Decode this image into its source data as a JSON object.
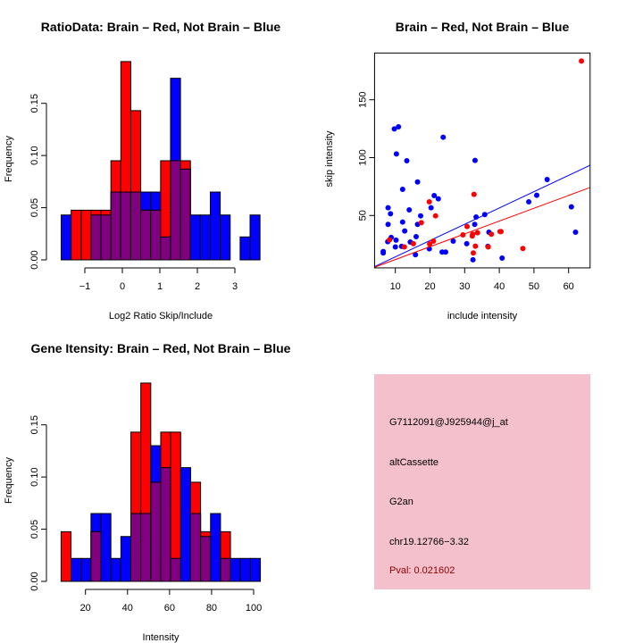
{
  "colors": {
    "brain": "#ff0000",
    "not_brain": "#0000ff",
    "overlap": "#800080",
    "panel": "#f4c0cc",
    "pval": "#8b0000"
  },
  "chart_data": [
    {
      "type": "bar",
      "title": "RatioData: Brain – Red, Not Brain – Blue",
      "xlabel": "Log2 Ratio Skip/Include",
      "ylabel": "Frequency",
      "bin_start": -1.63,
      "bin_width": 0.265,
      "xticks": [
        -1,
        0,
        1,
        2,
        3
      ],
      "xtick_labels": [
        "−1",
        "0",
        "1",
        "2",
        "3"
      ],
      "yticks": [
        0,
        0.05,
        0.1,
        0.15
      ],
      "ytick_labels": [
        "0.00",
        "0.05",
        "0.10",
        "0.15"
      ],
      "series": [
        {
          "name": "Brain",
          "color": "red",
          "values": [
            0,
            0.0476,
            0.0476,
            0.0476,
            0.0476,
            0.095,
            0.19,
            0.143,
            0.0476,
            0.0476,
            0.095,
            0.095,
            0.095,
            0,
            0,
            0,
            0,
            0,
            0,
            0
          ]
        },
        {
          "name": "Not Brain",
          "color": "blue",
          "values": [
            0.043,
            0,
            0,
            0.043,
            0.043,
            0.065,
            0.065,
            0.065,
            0.065,
            0.065,
            0.022,
            0.174,
            0.087,
            0.043,
            0.043,
            0.065,
            0.043,
            0,
            0.022,
            0.043
          ]
        }
      ]
    },
    {
      "type": "scatter",
      "title": "Brain – Red, Not Brain – Blue",
      "xlabel": "include intensity",
      "ylabel": "skip intensity",
      "xlim": [
        4,
        66.2
      ],
      "ylim": [
        4.75,
        190.4
      ],
      "xticks": [
        10,
        20,
        30,
        40,
        50,
        60
      ],
      "yticks": [
        50,
        100,
        150
      ],
      "series": [
        {
          "name": "Not Brain",
          "color": "blue",
          "points": [
            [
              6.5,
              18.9
            ],
            [
              6.5,
              17.6
            ],
            [
              7.9,
              56.7
            ],
            [
              7.9,
              42.3
            ],
            [
              8.6,
              51.5
            ],
            [
              8.8,
              31.0
            ],
            [
              7.8,
              27.4
            ],
            [
              10.2,
              28.7
            ],
            [
              10.0,
              22.8
            ],
            [
              9.7,
              124.8
            ],
            [
              10.9,
              126.6
            ],
            [
              10.3,
              103.2
            ],
            [
              12.1,
              72.6
            ],
            [
              12.1,
              44.3
            ],
            [
              12.7,
              36.6
            ],
            [
              13.3,
              97.3
            ],
            [
              14.0,
              54.9
            ],
            [
              14.3,
              27.1
            ],
            [
              11.8,
              23.3
            ],
            [
              15.8,
              16.1
            ],
            [
              16.0,
              31.7
            ],
            [
              16.4,
              79.0
            ],
            [
              16.4,
              42.3
            ],
            [
              17.3,
              49.7
            ],
            [
              19.8,
              21.2
            ],
            [
              20.3,
              56.7
            ],
            [
              21.2,
              67.2
            ],
            [
              22.4,
              64.4
            ],
            [
              23.8,
              117.6
            ],
            [
              23.5,
              18.4
            ],
            [
              24.5,
              18.4
            ],
            [
              26.7,
              27.9
            ],
            [
              30.6,
              25.6
            ],
            [
              32.4,
              11.7
            ],
            [
              32.9,
              42.3
            ],
            [
              33.0,
              97.6
            ],
            [
              33.3,
              48.7
            ],
            [
              35.8,
              50.8
            ],
            [
              36.7,
              23.3
            ],
            [
              37.0,
              35.6
            ],
            [
              40.8,
              13.2
            ],
            [
              48.5,
              61.8
            ],
            [
              50.8,
              67.5
            ],
            [
              53.8,
              81.1
            ],
            [
              60.8,
              57.5
            ],
            [
              62.0,
              35.6
            ]
          ],
          "fit_line": [
            [
              4,
              5.8
            ],
            [
              66.2,
              93.4
            ]
          ]
        },
        {
          "name": "Brain",
          "color": "red",
          "points": [
            [
              8.3,
              28.9
            ],
            [
              12.6,
              22.8
            ],
            [
              15.2,
              25.6
            ],
            [
              17.5,
              43.8
            ],
            [
              19.8,
              61.8
            ],
            [
              19.9,
              25.3
            ],
            [
              21.0,
              27.9
            ],
            [
              21.6,
              49.7
            ],
            [
              30.7,
              40.5
            ],
            [
              29.5,
              33.3
            ],
            [
              32.2,
              32.3
            ],
            [
              32.3,
              33.8
            ],
            [
              32.5,
              17.6
            ],
            [
              32.7,
              68.3
            ],
            [
              33.1,
              23.5
            ],
            [
              33.7,
              35.1
            ],
            [
              36.8,
              22.8
            ],
            [
              37.7,
              33.8
            ],
            [
              40.2,
              36.1
            ],
            [
              40.5,
              36.1
            ],
            [
              46.8,
              21.5
            ],
            [
              63.7,
              183.4
            ]
          ],
          "fit_line": [
            [
              4,
              5.3
            ],
            [
              66.2,
              74.2
            ]
          ]
        }
      ]
    },
    {
      "type": "bar",
      "title": "Gene Itensity: Brain – Red, Not Brain – Blue",
      "xlabel": "Intensity",
      "ylabel": "Frequency",
      "bin_start": 8.4,
      "bin_width": 4.74,
      "xticks": [
        20,
        40,
        60,
        80,
        100
      ],
      "xtick_labels": [
        "20",
        "40",
        "60",
        "80",
        "100"
      ],
      "yticks": [
        0,
        0.05,
        0.1,
        0.15
      ],
      "ytick_labels": [
        "0.00",
        "0.05",
        "0.10",
        "0.15"
      ],
      "series": [
        {
          "name": "Brain",
          "color": "red",
          "values": [
            0.0476,
            0,
            0,
            0.0476,
            0,
            0,
            0,
            0.143,
            0.19,
            0.095,
            0.143,
            0.143,
            0,
            0.095,
            0.0476,
            0,
            0.0476,
            0,
            0,
            0
          ]
        },
        {
          "name": "Not Brain",
          "color": "blue",
          "values": [
            0,
            0.022,
            0.022,
            0.065,
            0.065,
            0.022,
            0.043,
            0.065,
            0.065,
            0.13,
            0.109,
            0.022,
            0.109,
            0.065,
            0.043,
            0.065,
            0.022,
            0.022,
            0.022,
            0.022
          ]
        }
      ]
    }
  ],
  "info_panel": {
    "gene_id": "G7112091@J925944@j_at",
    "event_type": "altCassette",
    "group": "G2an",
    "location": "chr19.12766−3.32",
    "pval": "Pval: 0.021602"
  }
}
